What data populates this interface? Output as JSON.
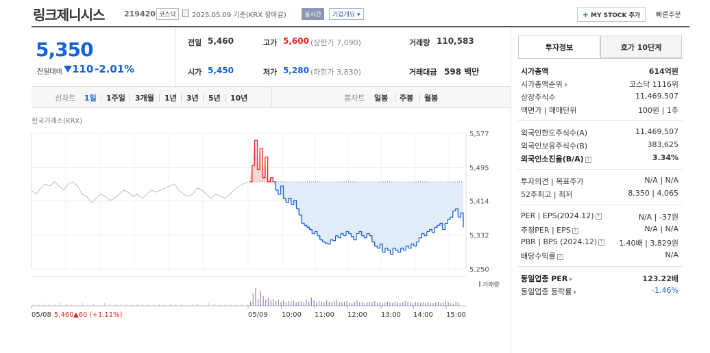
{
  "header": {
    "company_name": "링크제니시스",
    "code": "219420",
    "market": "코스닥",
    "date_text": "2025.05.09 기준(KRX 장마감)",
    "realtime_badge": "실시간",
    "company_info_btn": "기업개요 ▾",
    "mystock_btn": "MY STOCK 추가",
    "quick_order": "빠른주문"
  },
  "price": {
    "current": "5,350",
    "change_label": "전일대비",
    "change_value": "110",
    "change_pct": "-2.01%"
  },
  "stats": {
    "prev_close_label": "전일",
    "prev_close": "5,460",
    "high_label": "고가",
    "high": "5,600",
    "upper_limit": "(상한가 7,090)",
    "volume_label": "거래량",
    "volume": "110,583",
    "open_label": "시가",
    "open": "5,450",
    "low_label": "저가",
    "low": "5,280",
    "lower_limit": "(하한가 3,830)",
    "amount_label": "거래대금",
    "amount": "598 백만"
  },
  "period_bar": {
    "line_label": "선차트",
    "periods": [
      "1일",
      "1주일",
      "3개월",
      "1년",
      "3년",
      "5년",
      "10년"
    ],
    "candle_label": "봉차트",
    "candles": [
      "일봉",
      "주봉",
      "월봉"
    ]
  },
  "chart": {
    "exchange_label": "한국거래소(KRX)",
    "volume_legend": "거래량",
    "prev_day_label": "05/08",
    "prev_day_price": "5,460",
    "prev_day_change": "▲60 (+1.11%)"
  },
  "colors": {
    "up": "#e5231d",
    "down": "#1761d9",
    "prev_day_line": "#bdbdbd",
    "fill_down": "#e2ebf8",
    "fill_up": "#f8d6d6",
    "volume": "#9a7fbd"
  },
  "chart_data": {
    "type": "line",
    "title": "",
    "ylabel": "",
    "xlabel": "",
    "ylim": [
      5250,
      5577
    ],
    "y_ticks": [
      "5,577",
      "5,495",
      "5,414",
      "5,332",
      "5,250"
    ],
    "x_ticks": [
      "05/08",
      "05/09",
      "10:00",
      "11:00",
      "12:00",
      "13:00",
      "14:00",
      "15:00"
    ],
    "reference_price": 5460,
    "series": [
      {
        "values_prev_day": [
          5440,
          5430,
          5445,
          5455,
          5450,
          5460,
          5450,
          5440,
          5455,
          5460,
          5450,
          5430,
          5425,
          5410,
          5420,
          5430,
          5425,
          5415,
          5420,
          5430,
          5440,
          5435,
          5425,
          5430,
          5420,
          5430,
          5440,
          5435,
          5440,
          5445,
          5450,
          5455,
          5440,
          5430,
          5425,
          5430,
          5445,
          5440,
          5430,
          5420,
          5430,
          5425,
          5420,
          5430,
          5440,
          5450,
          5455,
          5460
        ]
      },
      {
        "values_today": [
          5460,
          5500,
          5560,
          5490,
          5540,
          5470,
          5520,
          5460,
          5470,
          5460,
          5440,
          5430,
          5450,
          5420,
          5410,
          5420,
          5405,
          5415,
          5395,
          5380,
          5360,
          5355,
          5350,
          5345,
          5335,
          5340,
          5330,
          5320,
          5315,
          5312,
          5310,
          5320,
          5318,
          5330,
          5325,
          5335,
          5330,
          5340,
          5335,
          5328,
          5320,
          5335,
          5340,
          5330,
          5325,
          5335,
          5330,
          5315,
          5305,
          5300,
          5310,
          5290,
          5300,
          5295,
          5285,
          5300,
          5295,
          5290,
          5300,
          5295,
          5305,
          5300,
          5310,
          5305,
          5315,
          5325,
          5335,
          5330,
          5340,
          5345,
          5338,
          5350,
          5355,
          5360,
          5345,
          5360,
          5370,
          5375,
          5390,
          5395,
          5375,
          5385,
          5350
        ]
      }
    ]
  },
  "info_panel": {
    "tab_invest": "투자정보",
    "tab_order": "호가 10단계",
    "rows": [
      {
        "label": "시가총액",
        "value": "614억원"
      },
      {
        "label": "시가총액순위",
        "value": "코스닥 1116위"
      },
      {
        "label": "상장주식수",
        "value": "11,469,507"
      },
      {
        "label": "액면가 | 매매단위",
        "value": "100원 | 1주"
      },
      {
        "label": "외국인한도주식수(A)",
        "value": "11,469,507"
      },
      {
        "label": "외국인보유주식수(B)",
        "value": "383,625"
      },
      {
        "label": "외국인소진율(B/A)",
        "value": "3.34%"
      },
      {
        "label": "투자의견 | 목표주가",
        "value": "N/A | N/A"
      },
      {
        "label": "52주최고 | 최저",
        "value": "8,350 | 4,065"
      },
      {
        "label": "PER | EPS(2024.12)",
        "value": "N/A | -37원"
      },
      {
        "label": "추정PER | EPS",
        "value": "N/A | N/A"
      },
      {
        "label": "PBR | BPS (2024.12)",
        "value": "1.40배 | 3,829원"
      },
      {
        "label": "배당수익률",
        "value": "N/A"
      },
      {
        "label": "동일업종 PER",
        "value": "123.22배"
      },
      {
        "label": "동일업종 등락률",
        "value": "-1.46%"
      }
    ]
  }
}
